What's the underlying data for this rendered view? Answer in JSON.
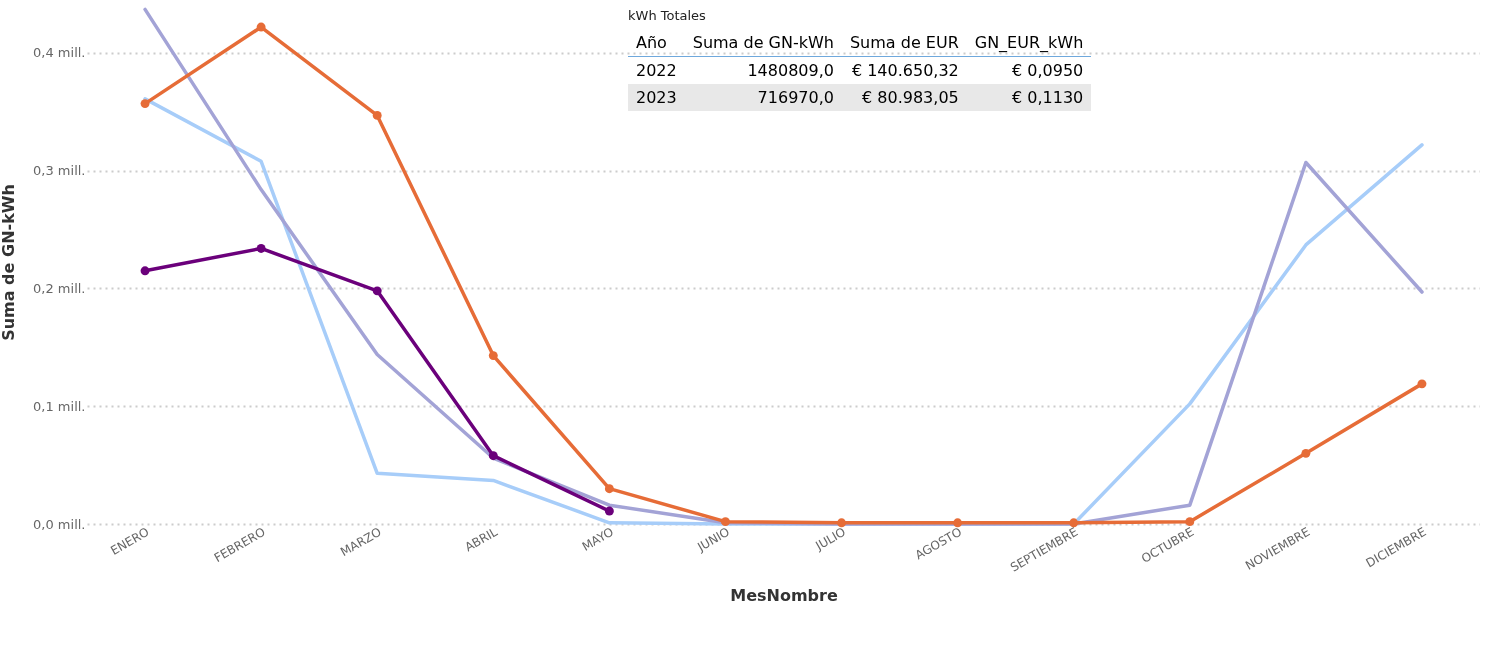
{
  "chart_data": {
    "type": "line",
    "xlabel": "MesNombre",
    "ylabel": "Suma de GN-kWh",
    "categories": [
      "ENERO",
      "FEBRERO",
      "MARZO",
      "ABRIL",
      "MAYO",
      "JUNIO",
      "JULIO",
      "AGOSTO",
      "SEPTIEMBRE",
      "OCTUBRE",
      "NOVIEMBRE",
      "DICIEMBRE"
    ],
    "series": [
      {
        "color": "#a7cdf9",
        "marker": "none",
        "values": [
          0.361,
          0.308,
          0.043,
          0.037,
          0.001,
          0,
          0,
          0,
          0,
          0.102,
          0.237,
          0.322
        ]
      },
      {
        "color": "#a3a3d6",
        "marker": "none",
        "values": [
          0.437,
          0.284,
          0.144,
          0.056,
          0.016,
          0.001,
          0,
          0,
          0,
          0.016,
          0.307,
          0.197
        ]
      },
      {
        "color": "#e66c37",
        "marker": "circle",
        "values": [
          0.357,
          0.422,
          0.347,
          0.143,
          0.03,
          0.002,
          0.001,
          0.001,
          0.001,
          0.002,
          0.06,
          0.119
        ]
      },
      {
        "color": "#6b007b",
        "marker": "circle",
        "values": [
          0.215,
          0.234,
          0.198,
          0.058,
          0.011,
          null,
          null,
          null,
          null,
          null,
          null,
          null
        ]
      }
    ],
    "ylim": [
      0,
      0.445
    ],
    "yticks": [
      {
        "value": 0,
        "label": "0,0 mill."
      },
      {
        "value": 0.1,
        "label": "0,1 mill."
      },
      {
        "value": 0.2,
        "label": "0,2 mill."
      },
      {
        "value": 0.3,
        "label": "0,3 mill."
      },
      {
        "value": 0.4,
        "label": "0,4 mill."
      }
    ],
    "grid": "y",
    "annotations": [
      "kWh Totales",
      "Año",
      "Suma de GN-kWh",
      "Suma de EUR",
      "GN_EUR_kWh",
      "2022",
      "1480809,0",
      "€ 140.650,32",
      "€ 0,0950",
      "2023",
      "716970,0",
      "€ 80.983,05",
      "€ 0,1130"
    ]
  }
}
